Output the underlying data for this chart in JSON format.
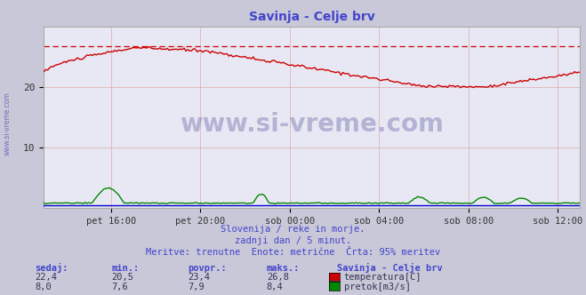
{
  "title": "Savinja - Celje brv",
  "title_color": "#4444cc",
  "bg_color": "#c8c8d8",
  "plot_bg_color": "#e8e8f4",
  "grid_color": "#ddaaaa",
  "x_labels": [
    "pet 16:00",
    "pet 20:00",
    "sob 00:00",
    "sob 04:00",
    "sob 08:00",
    "sob 12:00"
  ],
  "y_min": 0,
  "y_max": 30,
  "y_ticks": [
    10,
    20
  ],
  "dashed_line_y": 26.8,
  "dashed_line_color": "#cc0000",
  "temp_color": "#cc0000",
  "flow_color": "#008800",
  "blue_line_color": "#0000cc",
  "subtitle1": "Slovenija / reke in morje.",
  "subtitle2": "zadnji dan / 5 minut.",
  "subtitle3": "Meritve: trenutne  Enote: metrične  Črta: 95% meritev",
  "subtitle_color": "#4444cc",
  "label_sedaj": "sedaj:",
  "label_min": "min.:",
  "label_povpr": "povpr.:",
  "label_maks": "maks.:",
  "label_station": "Savinja - Celje brv",
  "temp_sedaj": "22,4",
  "temp_min": "20,5",
  "temp_povpr": "23,4",
  "temp_maks": "26,8",
  "flow_sedaj": "8,0",
  "flow_min": "7,6",
  "flow_povpr": "7,9",
  "flow_maks": "8,4",
  "temp_label": "temperatura[C]",
  "flow_label": "pretok[m3/s]",
  "watermark": "www.si-vreme.com",
  "watermark_color": "#8888bb",
  "left_label": "www.si-vreme.com",
  "left_label_color": "#6666bb"
}
